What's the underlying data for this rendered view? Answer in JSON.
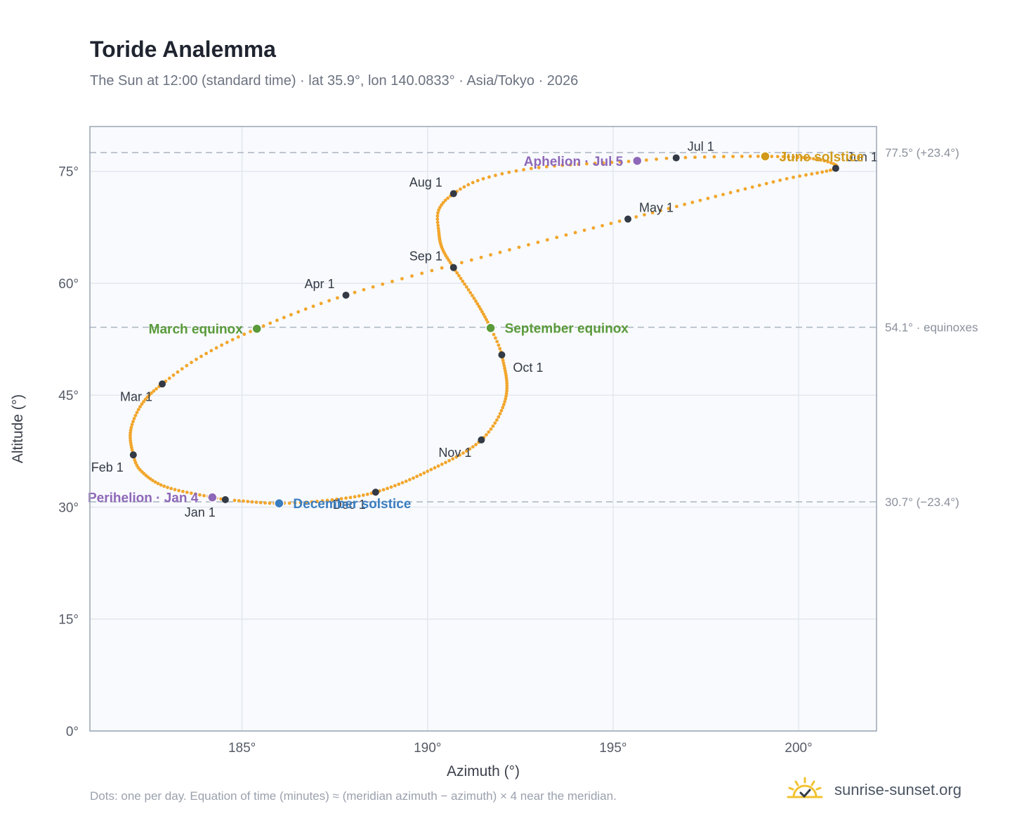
{
  "header": {
    "title": "Toride Analemma",
    "subtitle": "The Sun at 12:00 (standard time) · lat 35.9°, lon 140.0833° · Asia/Tokyo · 2026"
  },
  "footnote": "Dots: one per day. Equation of time (minutes) ≈ (meridian azimuth − azimuth) × 4 near the meridian.",
  "brand": {
    "name": "sunrise-sunset.org",
    "icon": "sun-logo-icon"
  },
  "colors": {
    "path": "#f2a62c",
    "month_marker": "#333a45",
    "equinox": "#5a9a3a",
    "solstice_june": "#d19a1a",
    "solstice_december": "#3b7ec0",
    "apsis": "#8e68b8",
    "plot_background": "#f8fafd",
    "grid": "#e3e8ef",
    "reference_line": "#aab4c0"
  },
  "chart_data": {
    "type": "scatter",
    "xlabel": "Azimuth (°)",
    "ylabel": "Altitude (°)",
    "xlim": [
      180.9,
      202.1
    ],
    "ylim": [
      0,
      81
    ],
    "x_ticks": [
      185,
      190,
      195,
      200
    ],
    "x_tick_labels": [
      "185°",
      "190°",
      "195°",
      "200°"
    ],
    "y_ticks": [
      0,
      15,
      30,
      45,
      60,
      75
    ],
    "y_tick_labels": [
      "0°",
      "15°",
      "30°",
      "45°",
      "60°",
      "75°"
    ],
    "grid": true,
    "reference_lines": [
      {
        "y": 77.5,
        "label": "77.5° (+23.4°)"
      },
      {
        "y": 54.1,
        "label": "54.1° · equinoxes"
      },
      {
        "y": 30.7,
        "label": "30.7° (−23.4°)"
      }
    ],
    "series": [
      {
        "type": "daily-dots",
        "anchors": [
          {
            "day": 0,
            "az": 184.55,
            "alt": 31.0
          },
          {
            "day": 3,
            "az": 184.2,
            "alt": 31.3
          },
          {
            "day": 15,
            "az": 182.9,
            "alt": 32.8
          },
          {
            "day": 25,
            "az": 182.25,
            "alt": 35.0
          },
          {
            "day": 31,
            "az": 182.07,
            "alt": 37.0
          },
          {
            "day": 41,
            "az": 182.0,
            "alt": 40.3
          },
          {
            "day": 50,
            "az": 182.3,
            "alt": 43.8
          },
          {
            "day": 59,
            "az": 182.85,
            "alt": 46.5
          },
          {
            "day": 68,
            "az": 183.9,
            "alt": 50.2
          },
          {
            "day": 78,
            "az": 185.4,
            "alt": 53.9
          },
          {
            "day": 90,
            "az": 187.8,
            "alt": 58.4
          },
          {
            "day": 105,
            "az": 191.7,
            "alt": 63.8
          },
          {
            "day": 120,
            "az": 195.4,
            "alt": 68.6
          },
          {
            "day": 140,
            "az": 199.5,
            "alt": 73.8
          },
          {
            "day": 151,
            "az": 201.0,
            "alt": 75.4
          },
          {
            "day": 160,
            "az": 200.5,
            "alt": 76.6
          },
          {
            "day": 171,
            "az": 199.1,
            "alt": 77.0
          },
          {
            "day": 181,
            "az": 196.7,
            "alt": 76.8
          },
          {
            "day": 185,
            "az": 195.65,
            "alt": 76.4
          },
          {
            "day": 197,
            "az": 193.0,
            "alt": 75.5
          },
          {
            "day": 205,
            "az": 191.5,
            "alt": 74.0
          },
          {
            "day": 212,
            "az": 190.7,
            "alt": 72.0
          },
          {
            "day": 219,
            "az": 190.3,
            "alt": 69.8
          },
          {
            "day": 226,
            "az": 190.3,
            "alt": 67.0
          },
          {
            "day": 235,
            "az": 190.4,
            "alt": 64.6
          },
          {
            "day": 243,
            "az": 190.7,
            "alt": 62.1
          },
          {
            "day": 255,
            "az": 191.3,
            "alt": 57.6
          },
          {
            "day": 265,
            "az": 191.7,
            "alt": 54.0
          },
          {
            "day": 273,
            "az": 192.0,
            "alt": 50.4
          },
          {
            "day": 290,
            "az": 192.1,
            "alt": 44.5
          },
          {
            "day": 304,
            "az": 191.45,
            "alt": 39.0
          },
          {
            "day": 320,
            "az": 190.0,
            "alt": 34.8
          },
          {
            "day": 334,
            "az": 188.6,
            "alt": 32.0
          },
          {
            "day": 345,
            "az": 187.3,
            "alt": 30.9
          },
          {
            "day": 354,
            "az": 186.0,
            "alt": 30.5
          },
          {
            "day": 364,
            "az": 184.8,
            "alt": 30.9
          }
        ]
      }
    ],
    "month_markers": [
      {
        "label": "Jan 1",
        "az": 184.55,
        "alt": 31.0,
        "pos": "below-left"
      },
      {
        "label": "Feb 1",
        "az": 182.07,
        "alt": 37.0,
        "pos": "below-left"
      },
      {
        "label": "Mar 1",
        "az": 182.85,
        "alt": 46.5,
        "pos": "below-left"
      },
      {
        "label": "Apr 1",
        "az": 187.8,
        "alt": 58.4,
        "pos": "above-left"
      },
      {
        "label": "May 1",
        "az": 195.4,
        "alt": 68.6,
        "pos": "above-right"
      },
      {
        "label": "Jun 1",
        "az": 201.0,
        "alt": 75.4,
        "pos": "above-right"
      },
      {
        "label": "Jul 1",
        "az": 196.7,
        "alt": 76.8,
        "pos": "above-right"
      },
      {
        "label": "Aug 1",
        "az": 190.7,
        "alt": 72.0,
        "pos": "above-left"
      },
      {
        "label": "Sep 1",
        "az": 190.7,
        "alt": 62.1,
        "pos": "above-left"
      },
      {
        "label": "Oct 1",
        "az": 192.0,
        "alt": 50.4,
        "pos": "below-right"
      },
      {
        "label": "Nov 1",
        "az": 191.45,
        "alt": 39.0,
        "pos": "below-left"
      },
      {
        "label": "Dec 1",
        "az": 188.6,
        "alt": 32.0,
        "pos": "below-left"
      }
    ],
    "events": [
      {
        "label": "March equinox",
        "az": 185.4,
        "alt": 53.9,
        "color": "#5a9a3a",
        "side": "left"
      },
      {
        "label": "September equinox",
        "az": 191.7,
        "alt": 54.0,
        "color": "#5a9a3a",
        "side": "right"
      },
      {
        "label": "June solstice",
        "az": 199.1,
        "alt": 77.0,
        "color": "#d19a1a",
        "side": "right"
      },
      {
        "label": "December solstice",
        "az": 186.0,
        "alt": 30.5,
        "color": "#3b7ec0",
        "side": "right"
      },
      {
        "label": "Aphelion · Jul 5",
        "az": 195.65,
        "alt": 76.4,
        "color": "#8e68b8",
        "side": "left"
      },
      {
        "label": "Perihelion · Jan 4",
        "az": 184.2,
        "alt": 31.3,
        "color": "#8e68b8",
        "side": "left"
      }
    ]
  }
}
